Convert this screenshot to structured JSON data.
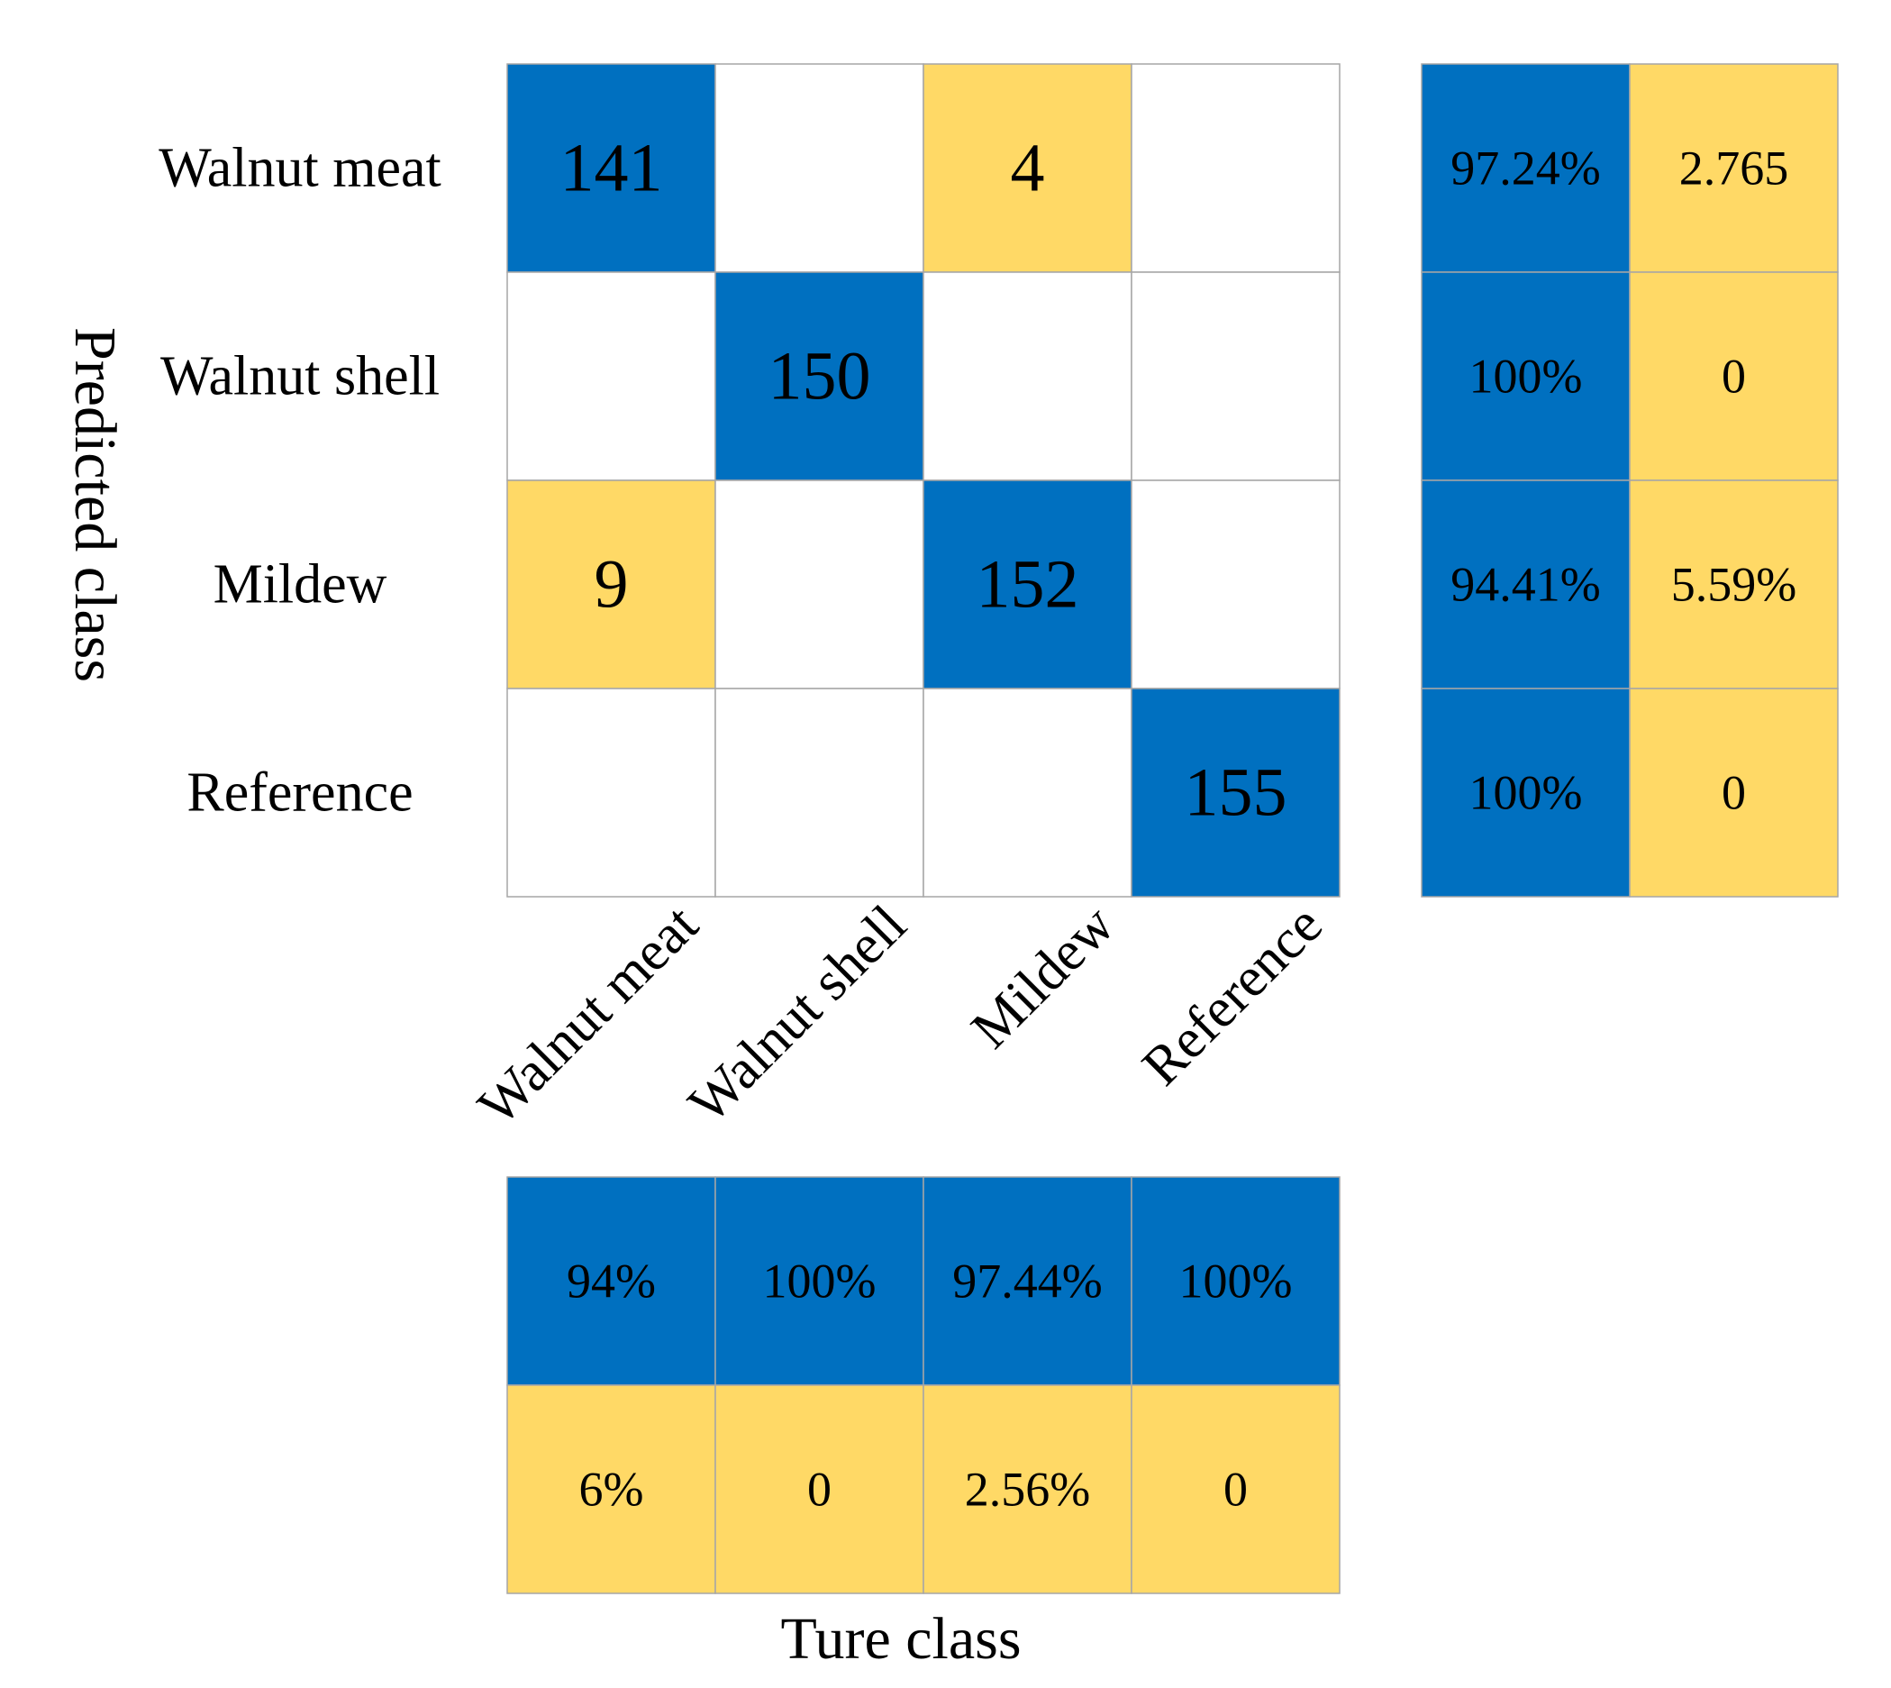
{
  "chart_data": {
    "type": "heatmap",
    "title": "",
    "xlabel": "Ture class",
    "ylabel": "Predicted class",
    "classes": [
      "Walnut meat",
      "Walnut shell",
      "Mildew",
      "Reference"
    ],
    "matrix": [
      [
        141,
        null,
        4,
        null
      ],
      [
        null,
        150,
        null,
        null
      ],
      [
        9,
        null,
        152,
        null
      ],
      [
        null,
        null,
        null,
        155
      ]
    ],
    "row_summary": [
      [
        "97.24%",
        "2.765"
      ],
      [
        "100%",
        "0"
      ],
      [
        "94.41%",
        "5.59%"
      ],
      [
        "100%",
        "0"
      ]
    ],
    "column_summary": [
      [
        "94%",
        "100%",
        "97.44%",
        "100%"
      ],
      [
        "6%",
        "0",
        "2.56%",
        "0"
      ]
    ]
  },
  "colors": {
    "correct": "#0070C0",
    "incorrect": "#FFD966",
    "empty": "#FFFFFF",
    "grid": "#A6A6A6"
  }
}
